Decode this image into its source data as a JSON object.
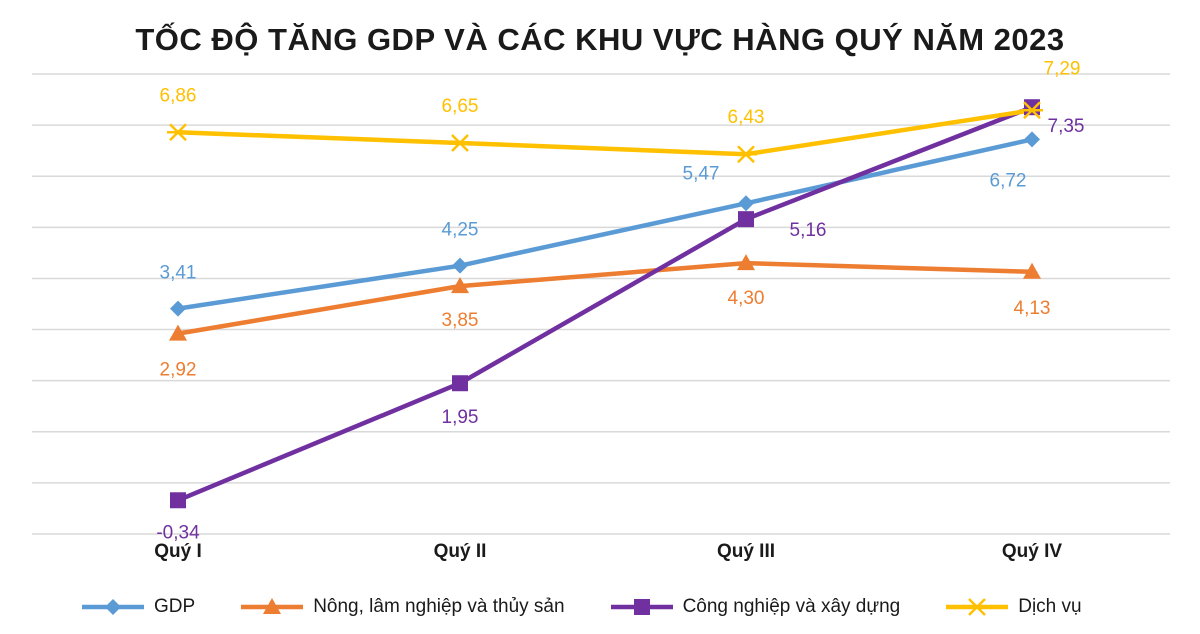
{
  "chart_data": {
    "type": "line",
    "title": "TỐC ĐỘ TĂNG GDP VÀ CÁC KHU VỰC HÀNG QUÝ NĂM 2023",
    "categories": [
      "Quý I",
      "Quý II",
      "Quý III",
      "Quý IV"
    ],
    "series": [
      {
        "name": "GDP",
        "values": [
          3.41,
          4.25,
          5.47,
          6.72
        ],
        "labels": [
          "3,41",
          "4,25",
          "5,47",
          "6,72"
        ],
        "color": "#5b9bd5",
        "marker": "diamond"
      },
      {
        "name": "Nông, lâm nghiệp và thủy sản",
        "values": [
          2.92,
          3.85,
          4.3,
          4.13
        ],
        "labels": [
          "2,92",
          "3,85",
          "4,30",
          "4,13"
        ],
        "color": "#ed7d31",
        "marker": "triangle"
      },
      {
        "name": "Công nghiệp và xây dựng",
        "values": [
          -0.34,
          1.95,
          5.16,
          7.35
        ],
        "labels": [
          "-0,34",
          "1,95",
          "5,16",
          "7,35"
        ],
        "color": "#7030a0",
        "marker": "square"
      },
      {
        "name": "Dịch vụ",
        "values": [
          6.86,
          6.65,
          6.43,
          7.29
        ],
        "labels": [
          "6,86",
          "6,65",
          "6,43",
          "7,29"
        ],
        "color": "#ffc000",
        "marker": "x"
      }
    ],
    "ylim": [
      -1,
      8
    ],
    "grid": true,
    "legend": "bottom"
  }
}
